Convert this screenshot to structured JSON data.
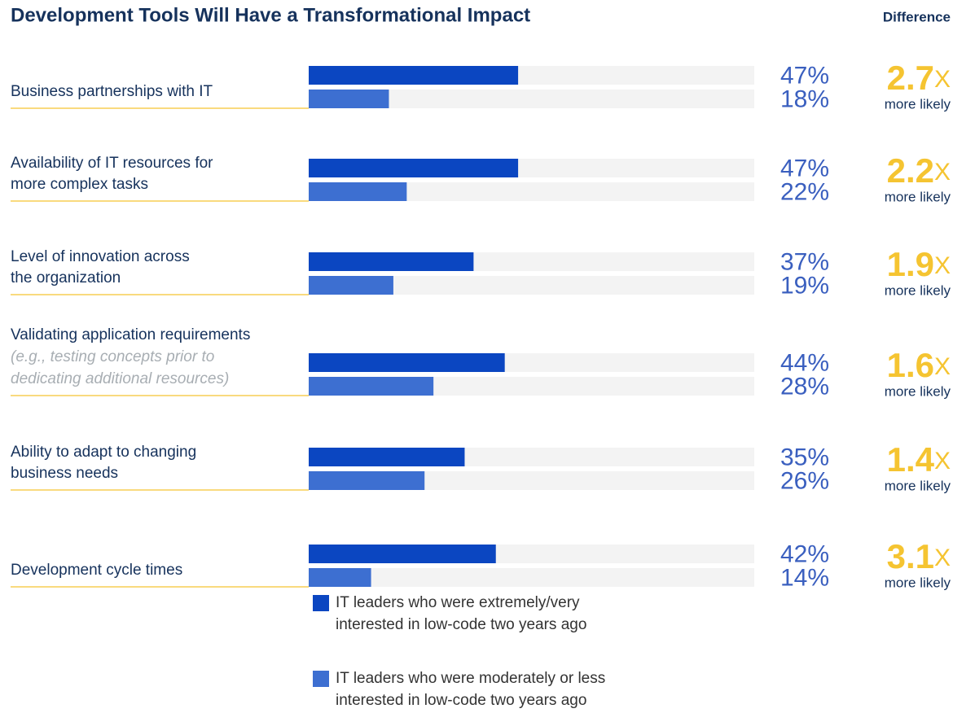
{
  "chart_data": {
    "type": "bar",
    "orientation": "horizontal",
    "title": "Development Tools Will Have a Transformational Impact",
    "categories": [
      "Business partnerships with IT",
      "Availability of IT resources for\nmore complex tasks",
      "Level of innovation across\nthe organization",
      "Validating application requirements",
      "Ability to adapt to changing\nbusiness needs",
      "Development cycle times"
    ],
    "category_notes": [
      null,
      null,
      null,
      "(e.g., testing concepts prior to\ndedicating additional resources)",
      null,
      null
    ],
    "series": [
      {
        "name": "IT leaders who were extremely/very\ninterested in low-code two years ago",
        "color": "#0b46c1",
        "values": [
          47,
          47,
          37,
          44,
          35,
          42
        ],
        "value_labels": [
          "47%",
          "47%",
          "37%",
          "44%",
          "35%",
          "42%"
        ]
      },
      {
        "name": "IT leaders who were moderately or less\ninterested in low-code two years ago",
        "color": "#3d6fd1",
        "values": [
          18,
          22,
          19,
          28,
          26,
          14
        ],
        "value_labels": [
          "18%",
          "22%",
          "19%",
          "28%",
          "26%",
          "14%"
        ]
      }
    ],
    "xlim": [
      0,
      100
    ],
    "difference": {
      "title": "Difference",
      "values": [
        2.7,
        2.2,
        1.9,
        1.6,
        1.4,
        3.1
      ],
      "unit": "X",
      "note": "more likely"
    }
  }
}
